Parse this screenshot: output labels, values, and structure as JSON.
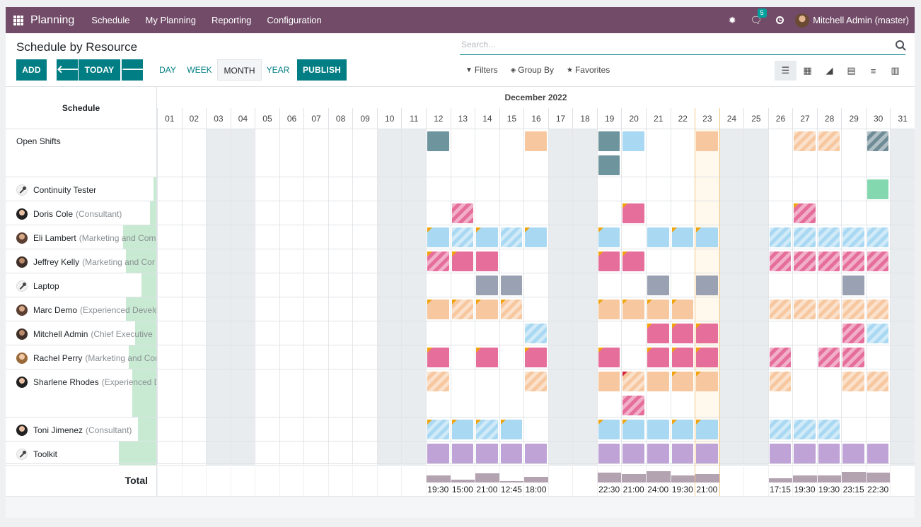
{
  "navbar": {
    "app_name": "Planning",
    "menu": [
      "Schedule",
      "My Planning",
      "Reporting",
      "Configuration"
    ],
    "bug_icon": "bug-icon",
    "chat_icon": "comments-icon",
    "messages_count": "5",
    "clock_icon": "clock-icon",
    "user_name": "Mitchell Admin (master)"
  },
  "control_panel": {
    "title": "Schedule by Resource",
    "add_label": "ADD",
    "prev_icon": "🡐",
    "today_label": "TODAY",
    "next_icon": "🡒",
    "scales": [
      "DAY",
      "WEEK",
      "MONTH",
      "YEAR"
    ],
    "active_scale": "MONTH",
    "publish_label": "PUBLISH",
    "search_placeholder": "Search...",
    "filters_label": "Filters",
    "groupby_label": "Group By",
    "favorites_label": "Favorites",
    "views": [
      "gantt-icon",
      "pivot-icon",
      "graph-icon",
      "calendar-icon",
      "list-icon",
      "kanban-icon"
    ]
  },
  "gantt": {
    "sidebar_title": "Schedule",
    "month": "December 2022",
    "days": [
      "01",
      "02",
      "03",
      "04",
      "05",
      "06",
      "07",
      "08",
      "09",
      "10",
      "11",
      "12",
      "13",
      "14",
      "15",
      "16",
      "17",
      "18",
      "19",
      "20",
      "21",
      "22",
      "23",
      "24",
      "25",
      "26",
      "27",
      "28",
      "29",
      "30",
      "31"
    ],
    "weekend_days": [
      3,
      4,
      10,
      11,
      17,
      18,
      24,
      25,
      31
    ],
    "today": 23,
    "colors": {
      "teal": "#6e949d",
      "blue": "#a9d8f3",
      "peach": "#f7c8a0",
      "pink": "#e56e9a",
      "gray": "#9aa1b2",
      "purple": "#bfa2d6",
      "green": "#84d8b0",
      "slate": "#6e8b96"
    },
    "rows": [
      {
        "name": "Open Shifts",
        "role": "",
        "icon": "none",
        "progress": 0,
        "lines": 2,
        "shifts": [
          [
            12,
            "teal",
            0,
            0,
            0
          ],
          [
            16,
            "peach",
            0,
            0,
            0
          ],
          [
            19,
            "teal",
            0,
            0,
            0
          ],
          [
            19,
            "teal",
            0,
            0,
            1
          ],
          [
            20,
            "blue",
            0,
            0,
            0
          ],
          [
            23,
            "peach",
            0,
            0,
            0
          ],
          [
            27,
            "peach",
            1,
            0,
            0
          ],
          [
            28,
            "peach",
            1,
            0,
            0
          ],
          [
            30,
            "slate",
            1,
            0,
            0
          ]
        ]
      },
      {
        "name": "Continuity Tester",
        "role": "",
        "icon": "wrench",
        "progress": 0.02,
        "lines": 1,
        "shifts": [
          [
            30,
            "green",
            0,
            0,
            0
          ]
        ]
      },
      {
        "name": "Doris Cole",
        "role": "(Consultant)",
        "icon": "person2",
        "progress": 0.04,
        "lines": 1,
        "shifts": [
          [
            13,
            "pink",
            1,
            0,
            0
          ],
          [
            20,
            "pink",
            0,
            1,
            0
          ],
          [
            27,
            "pink",
            1,
            1,
            0
          ]
        ]
      },
      {
        "name": "Eli Lambert",
        "role": "(Marketing and Com",
        "icon": "person",
        "progress": 0.22,
        "lines": 1,
        "shifts": [
          [
            12,
            "blue",
            0,
            1,
            0
          ],
          [
            13,
            "blue",
            1,
            0,
            0
          ],
          [
            14,
            "blue",
            0,
            1,
            0
          ],
          [
            15,
            "blue",
            1,
            0,
            0
          ],
          [
            16,
            "blue",
            0,
            1,
            0
          ],
          [
            19,
            "blue",
            0,
            1,
            0
          ],
          [
            21,
            "blue",
            0,
            0,
            0
          ],
          [
            22,
            "blue",
            0,
            1,
            0
          ],
          [
            23,
            "blue",
            0,
            1,
            0
          ],
          [
            26,
            "blue",
            1,
            0,
            0
          ],
          [
            27,
            "blue",
            1,
            0,
            0
          ],
          [
            28,
            "blue",
            1,
            0,
            0
          ],
          [
            29,
            "blue",
            1,
            0,
            0
          ],
          [
            30,
            "blue",
            1,
            0,
            0
          ]
        ]
      },
      {
        "name": "Jeffrey Kelly",
        "role": "(Marketing and Cor",
        "icon": "person3",
        "progress": 0.2,
        "lines": 1,
        "shifts": [
          [
            12,
            "pink",
            1,
            1,
            0
          ],
          [
            13,
            "pink",
            0,
            1,
            0
          ],
          [
            14,
            "pink",
            0,
            0,
            0
          ],
          [
            19,
            "pink",
            0,
            1,
            0
          ],
          [
            20,
            "pink",
            0,
            1,
            0
          ],
          [
            26,
            "pink",
            1,
            0,
            0
          ],
          [
            27,
            "pink",
            1,
            0,
            0
          ],
          [
            28,
            "pink",
            1,
            0,
            0
          ],
          [
            29,
            "pink",
            1,
            0,
            0
          ],
          [
            30,
            "pink",
            1,
            0,
            0
          ]
        ]
      },
      {
        "name": "Laptop",
        "role": "",
        "icon": "wrench",
        "progress": 0.1,
        "lines": 1,
        "shifts": [
          [
            14,
            "gray",
            0,
            0,
            0
          ],
          [
            15,
            "gray",
            0,
            0,
            0
          ],
          [
            21,
            "gray",
            0,
            0,
            0
          ],
          [
            23,
            "gray",
            0,
            0,
            0
          ],
          [
            29,
            "gray",
            0,
            0,
            0
          ]
        ]
      },
      {
        "name": "Marc Demo",
        "role": "(Experienced Develo",
        "icon": "person",
        "progress": 0.2,
        "lines": 1,
        "shifts": [
          [
            12,
            "peach",
            0,
            1,
            0
          ],
          [
            13,
            "peach",
            1,
            1,
            0
          ],
          [
            14,
            "peach",
            0,
            1,
            0
          ],
          [
            15,
            "peach",
            1,
            1,
            0
          ],
          [
            19,
            "peach",
            0,
            1,
            0
          ],
          [
            20,
            "peach",
            0,
            1,
            0
          ],
          [
            21,
            "peach",
            0,
            1,
            0
          ],
          [
            22,
            "peach",
            0,
            1,
            0
          ],
          [
            26,
            "peach",
            1,
            0,
            0
          ],
          [
            27,
            "peach",
            1,
            0,
            0
          ],
          [
            28,
            "peach",
            1,
            0,
            0
          ],
          [
            29,
            "peach",
            1,
            0,
            0
          ],
          [
            30,
            "peach",
            1,
            0,
            0
          ]
        ]
      },
      {
        "name": "Mitchell Admin",
        "role": "(Chief Executive",
        "icon": "person3",
        "progress": 0.14,
        "lines": 1,
        "shifts": [
          [
            16,
            "blue",
            1,
            0,
            0
          ],
          [
            21,
            "pink",
            0,
            1,
            0
          ],
          [
            22,
            "pink",
            0,
            1,
            0
          ],
          [
            23,
            "pink",
            0,
            1,
            0
          ],
          [
            29,
            "pink",
            1,
            0,
            0
          ],
          [
            30,
            "blue",
            1,
            0,
            0
          ]
        ]
      },
      {
        "name": "Rachel Perry",
        "role": "(Marketing and Cor",
        "icon": "person4",
        "progress": 0.18,
        "lines": 1,
        "shifts": [
          [
            12,
            "pink",
            0,
            1,
            0
          ],
          [
            14,
            "pink",
            0,
            1,
            0
          ],
          [
            16,
            "pink",
            0,
            1,
            0
          ],
          [
            19,
            "pink",
            0,
            1,
            0
          ],
          [
            21,
            "pink",
            0,
            1,
            0
          ],
          [
            22,
            "pink",
            0,
            1,
            0
          ],
          [
            23,
            "pink",
            0,
            1,
            0
          ],
          [
            26,
            "pink",
            1,
            0,
            0
          ],
          [
            28,
            "pink",
            1,
            0,
            0
          ],
          [
            29,
            "pink",
            1,
            0,
            0
          ]
        ]
      },
      {
        "name": "Sharlene Rhodes",
        "role": "(Experienced D",
        "icon": "person2",
        "progress": 0.16,
        "lines": 2,
        "shifts": [
          [
            12,
            "peach",
            1,
            0,
            0
          ],
          [
            16,
            "peach",
            1,
            0,
            0
          ],
          [
            19,
            "peach",
            0,
            0,
            0
          ],
          [
            20,
            "peach",
            1,
            2,
            0
          ],
          [
            20,
            "pink",
            1,
            0,
            1
          ],
          [
            21,
            "peach",
            0,
            0,
            0
          ],
          [
            22,
            "peach",
            0,
            1,
            0
          ],
          [
            23,
            "peach",
            0,
            1,
            0
          ],
          [
            26,
            "peach",
            1,
            0,
            0
          ],
          [
            29,
            "peach",
            1,
            0,
            0
          ],
          [
            30,
            "peach",
            1,
            0,
            0
          ]
        ]
      },
      {
        "name": "Toni Jimenez",
        "role": "(Consultant)",
        "icon": "person2",
        "progress": 0.12,
        "lines": 1,
        "shifts": [
          [
            12,
            "blue",
            1,
            1,
            0
          ],
          [
            13,
            "blue",
            0,
            1,
            0
          ],
          [
            14,
            "blue",
            1,
            1,
            0
          ],
          [
            15,
            "blue",
            0,
            1,
            0
          ],
          [
            19,
            "blue",
            0,
            1,
            0
          ],
          [
            20,
            "blue",
            0,
            1,
            0
          ],
          [
            21,
            "blue",
            0,
            0,
            0
          ],
          [
            22,
            "blue",
            0,
            1,
            0
          ],
          [
            23,
            "blue",
            0,
            1,
            0
          ],
          [
            26,
            "blue",
            1,
            0,
            0
          ],
          [
            27,
            "blue",
            1,
            0,
            0
          ],
          [
            28,
            "blue",
            1,
            0,
            0
          ]
        ]
      },
      {
        "name": "Toolkit",
        "role": "",
        "icon": "wrench",
        "progress": 0.25,
        "lines": 1,
        "shifts": [
          [
            12,
            "purple",
            0,
            0,
            0
          ],
          [
            13,
            "purple",
            0,
            0,
            0
          ],
          [
            14,
            "purple",
            0,
            0,
            0
          ],
          [
            15,
            "purple",
            0,
            0,
            0
          ],
          [
            16,
            "purple",
            0,
            0,
            0
          ],
          [
            19,
            "purple",
            0,
            0,
            0
          ],
          [
            20,
            "purple",
            0,
            0,
            0
          ],
          [
            21,
            "purple",
            0,
            0,
            0
          ],
          [
            22,
            "purple",
            0,
            0,
            0
          ],
          [
            23,
            "purple",
            0,
            0,
            0
          ],
          [
            26,
            "purple",
            0,
            0,
            0
          ],
          [
            27,
            "purple",
            0,
            0,
            0
          ],
          [
            28,
            "purple",
            0,
            0,
            0
          ],
          [
            29,
            "purple",
            0,
            0,
            0
          ],
          [
            30,
            "purple",
            0,
            0,
            0
          ]
        ]
      }
    ],
    "total_label": "Total",
    "totals": [
      {
        "day": 12,
        "hours": "19:30",
        "level": 0.5
      },
      {
        "day": 13,
        "hours": "15:00",
        "level": 0.2
      },
      {
        "day": 14,
        "hours": "21:00",
        "level": 0.65
      },
      {
        "day": 15,
        "hours": "12:45",
        "level": 0.05
      },
      {
        "day": 16,
        "hours": "18:00",
        "level": 0.42
      },
      {
        "day": 19,
        "hours": "22:30",
        "level": 0.72
      },
      {
        "day": 20,
        "hours": "21:00",
        "level": 0.6
      },
      {
        "day": 21,
        "hours": "24:00",
        "level": 0.82
      },
      {
        "day": 22,
        "hours": "19:30",
        "level": 0.5
      },
      {
        "day": 23,
        "hours": "21:00",
        "level": 0.6
      },
      {
        "day": 26,
        "hours": "17:15",
        "level": 0.32
      },
      {
        "day": 27,
        "hours": "19:30",
        "level": 0.5
      },
      {
        "day": 28,
        "hours": "19:30",
        "level": 0.5
      },
      {
        "day": 29,
        "hours": "23:15",
        "level": 0.76
      },
      {
        "day": 30,
        "hours": "22:30",
        "level": 0.72
      }
    ]
  }
}
